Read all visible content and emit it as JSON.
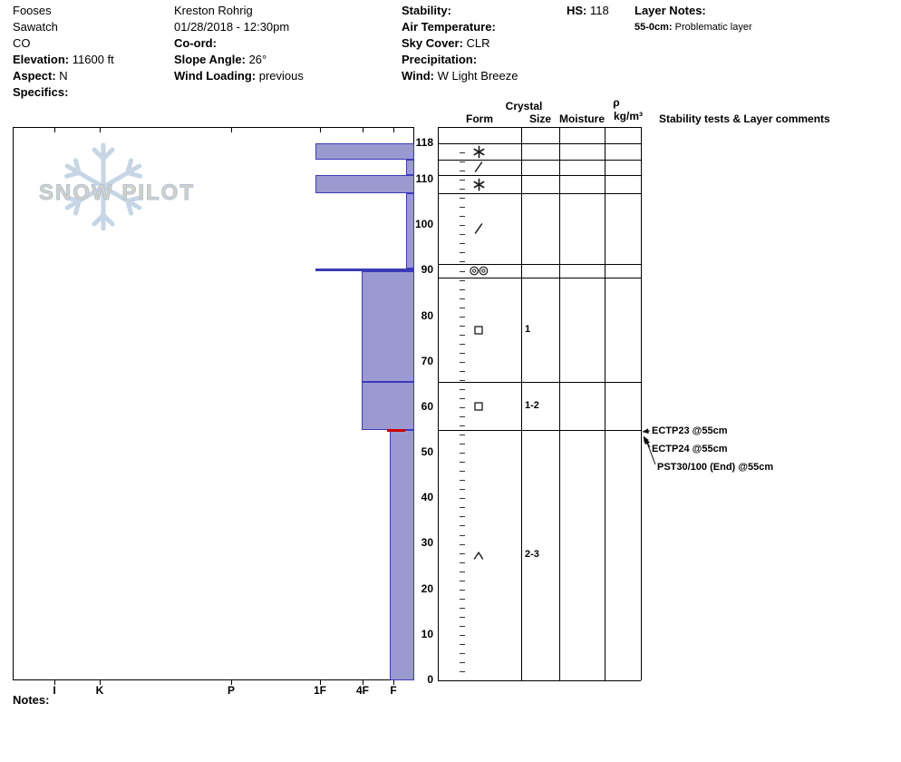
{
  "header": {
    "columns": [
      {
        "name": "location",
        "lines": [
          {
            "label": "",
            "value": "Fooses"
          },
          {
            "label": "",
            "value": "Sawatch"
          },
          {
            "label": "",
            "value": "CO"
          },
          {
            "label": "Elevation:",
            "value": "11600 ft"
          },
          {
            "label": "Aspect:",
            "value": "N"
          },
          {
            "label": "Specifics:",
            "value": ""
          }
        ]
      },
      {
        "name": "observer",
        "lines": [
          {
            "label": "",
            "value": "Kreston Rohrig"
          },
          {
            "label": "",
            "value": "01/28/2018 - 12:30pm"
          },
          {
            "label": "Co-ord:",
            "value": ""
          },
          {
            "label": "Slope Angle:",
            "value": "26°"
          },
          {
            "label": "Wind Loading:",
            "value": "previous"
          }
        ]
      },
      {
        "name": "conditions",
        "lines": [
          {
            "label": "Stability:",
            "value": ""
          },
          {
            "label": "Air Temperature:",
            "value": ""
          },
          {
            "label": "Sky Cover:",
            "value": "CLR"
          },
          {
            "label": "Precipitation:",
            "value": ""
          },
          {
            "label": "Wind:",
            "value": "W Light Breeze"
          }
        ]
      },
      {
        "name": "hs",
        "lines": [
          {
            "label": "HS:",
            "value": "118"
          }
        ]
      }
    ],
    "layer_notes": {
      "title": "Layer Notes:",
      "entries": [
        {
          "label": "55-0cm:",
          "value": "Problematic layer"
        }
      ]
    }
  },
  "watermark": {
    "text": "SNOW PILOT"
  },
  "notes": {
    "label": "Notes:"
  },
  "chart_data": {
    "type": "snow-profile",
    "hs": "118",
    "depth_axis": {
      "unit": "cm",
      "max": 118,
      "labeled_ticks": [
        118,
        110,
        100,
        90,
        80,
        70,
        60,
        50,
        40,
        30,
        20,
        10,
        0
      ],
      "minor_tick_step": 2
    },
    "hardness_axis": {
      "labels": [
        "I",
        "K",
        "P",
        "1F",
        "4F",
        "F"
      ]
    },
    "layer_boundaries": [
      118,
      114.5,
      111,
      107,
      91.5,
      88.5,
      65.5,
      55,
      0
    ],
    "hardness_profile": [
      {
        "from": 118,
        "to": 114.5,
        "hardness": "1F"
      },
      {
        "from": 114.5,
        "to": 111,
        "hardness": "F-"
      },
      {
        "from": 111,
        "to": 107,
        "hardness": "1F"
      },
      {
        "from": 107,
        "to": 90.5,
        "hardness": "F-"
      },
      {
        "from": 90.5,
        "to": 90,
        "hardness": "1F"
      },
      {
        "from": 90,
        "to": 65.5,
        "hardness": "4F"
      },
      {
        "from": 65.5,
        "to": 55,
        "hardness": "4F"
      },
      {
        "from": 55,
        "to": 0,
        "hardness": "F"
      }
    ],
    "form_rows": [
      {
        "from": 118,
        "to": 114.5,
        "form": "stellar",
        "size": ""
      },
      {
        "from": 114.5,
        "to": 111,
        "form": "decomposing-fragments",
        "size": ""
      },
      {
        "from": 111,
        "to": 107,
        "form": "stellar",
        "size": ""
      },
      {
        "from": 107,
        "to": 91.5,
        "form": "decomposing-fragments",
        "size": ""
      },
      {
        "from": 91.5,
        "to": 88.5,
        "form": "double-circle",
        "size": ""
      },
      {
        "from": 88.5,
        "to": 65.5,
        "form": "facets",
        "size": "1"
      },
      {
        "from": 65.5,
        "to": 55,
        "form": "facets",
        "size": "1-2"
      },
      {
        "from": 55,
        "to": 0,
        "form": "depth-hoar",
        "size": "2-3"
      }
    ],
    "table_headers": {
      "form": "Form",
      "crystal": "Crystal",
      "size": "Size",
      "moisture": "Moisture",
      "rho": "ρ",
      "rho_unit": "kg/m³",
      "comments": "Stability tests & Layer comments"
    },
    "stability_tests": [
      {
        "label": "ECTP23 @55cm",
        "depth": 55
      },
      {
        "label": "ECTP24 @55cm",
        "depth": 55
      },
      {
        "label": "PST30/100 (End) @55cm",
        "depth": 55
      }
    ],
    "problem_marker_depth": 55,
    "colors": {
      "bar_fill": "#9b9ad0",
      "bar_border": "#3b3bb8",
      "problem_marker": "#cc0000"
    }
  }
}
